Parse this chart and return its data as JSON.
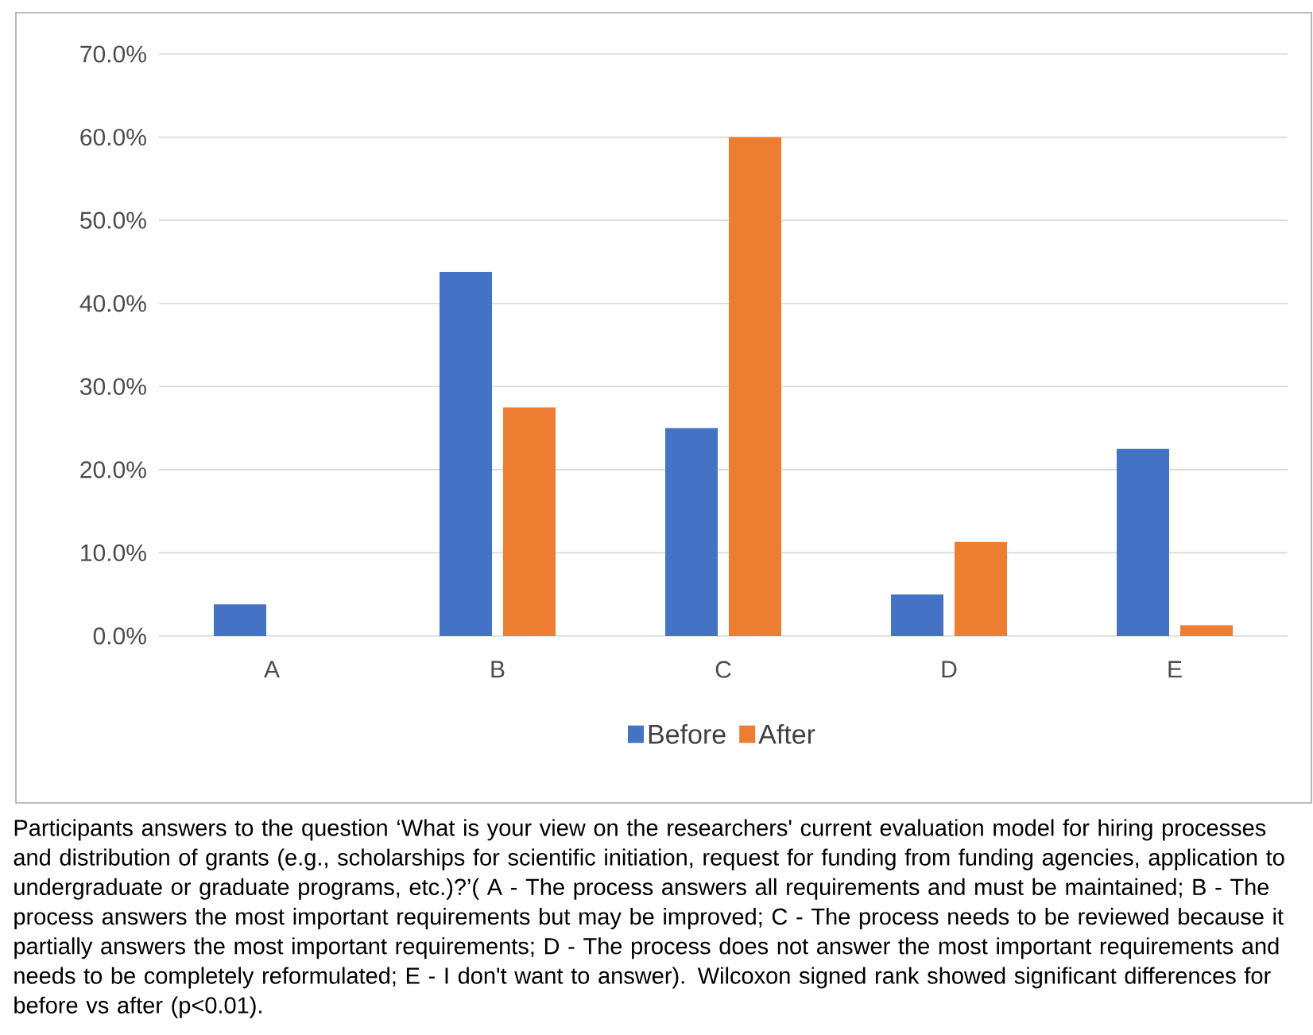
{
  "chart_data": {
    "type": "bar",
    "categories": [
      "A",
      "B",
      "C",
      "D",
      "E"
    ],
    "series": [
      {
        "name": "Before",
        "color": "#4472c4",
        "values": [
          3.8,
          43.8,
          25.0,
          5.0,
          22.5
        ]
      },
      {
        "name": "After",
        "color": "#ed7d31",
        "values": [
          0,
          27.5,
          60.0,
          11.3,
          1.3
        ]
      }
    ],
    "ylim": [
      0,
      70
    ],
    "yticks": [
      {
        "value": 0,
        "label": "0.0%"
      },
      {
        "value": 10,
        "label": "10.0%"
      },
      {
        "value": 20,
        "label": "20.0%"
      },
      {
        "value": 30,
        "label": "30.0%"
      },
      {
        "value": 40,
        "label": "40.0%"
      },
      {
        "value": 50,
        "label": "50.0%"
      },
      {
        "value": 60,
        "label": "60.0%"
      },
      {
        "value": 70,
        "label": "70.0%"
      }
    ],
    "grid": "y",
    "legend": "bottom",
    "annotations": [
      "Participants answers to the question ‘What is your view on the researchers' current evaluation model for hiring processes and distribution of grants (e.g., scholarships for scientific initiation, request for funding from funding agencies, application to undergraduate or graduate programs, etc.)?’( A - The process answers all requirements and must be maintained; B - The process answers the most important requirements but may be improved; C - The process needs to be reviewed because it partially answers the most important requirements; D - The process does not answer the most important requirements and needs to be completely reformulated; E - I don't want to answer). Wilcoxon signed rank showed significant differences for before vs after (p<0.01)."
    ]
  }
}
